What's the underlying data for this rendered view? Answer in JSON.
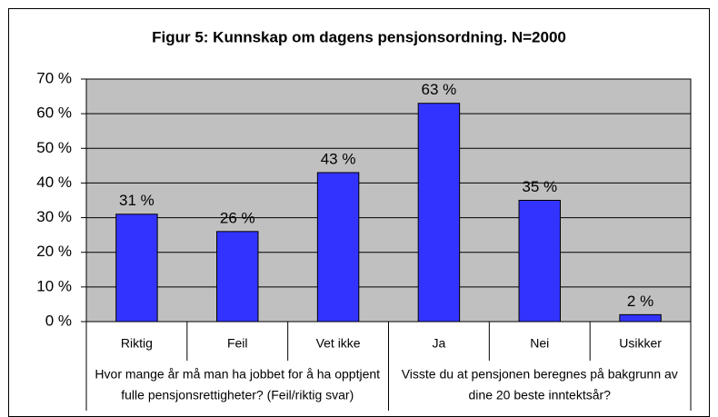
{
  "chart_data": {
    "type": "bar",
    "title": "Figur 5: Kunnskap om dagens pensjonsordning. N=2000",
    "categories": [
      "Riktig",
      "Feil",
      "Vet ikke",
      "Ja",
      "Nei",
      "Usikker"
    ],
    "groups": [
      {
        "lines": [
          "Hvor mange år må man ha jobbet for å ha opptjent",
          "fulle pensjonsrettigheter? (Feil/riktig svar)"
        ]
      },
      {
        "lines": [
          "Visste du at pensjonen beregnes på bakgrunn av",
          "dine 20 beste inntektsår?"
        ]
      }
    ],
    "values": [
      31,
      26,
      43,
      63,
      35,
      2
    ],
    "value_labels": [
      "31 %",
      "26 %",
      "43 %",
      "63 %",
      "35 %",
      "2 %"
    ],
    "color": "#3333ff",
    "ylim": [
      0,
      70
    ],
    "yticks": [
      {
        "value": 0,
        "label": "0 %"
      },
      {
        "value": 10,
        "label": "10 %"
      },
      {
        "value": 20,
        "label": "20 %"
      },
      {
        "value": 30,
        "label": "30 %"
      },
      {
        "value": 40,
        "label": "40 %"
      },
      {
        "value": 50,
        "label": "50 %"
      },
      {
        "value": 60,
        "label": "60 %"
      },
      {
        "value": 70,
        "label": "70 %"
      }
    ],
    "grid": true
  }
}
